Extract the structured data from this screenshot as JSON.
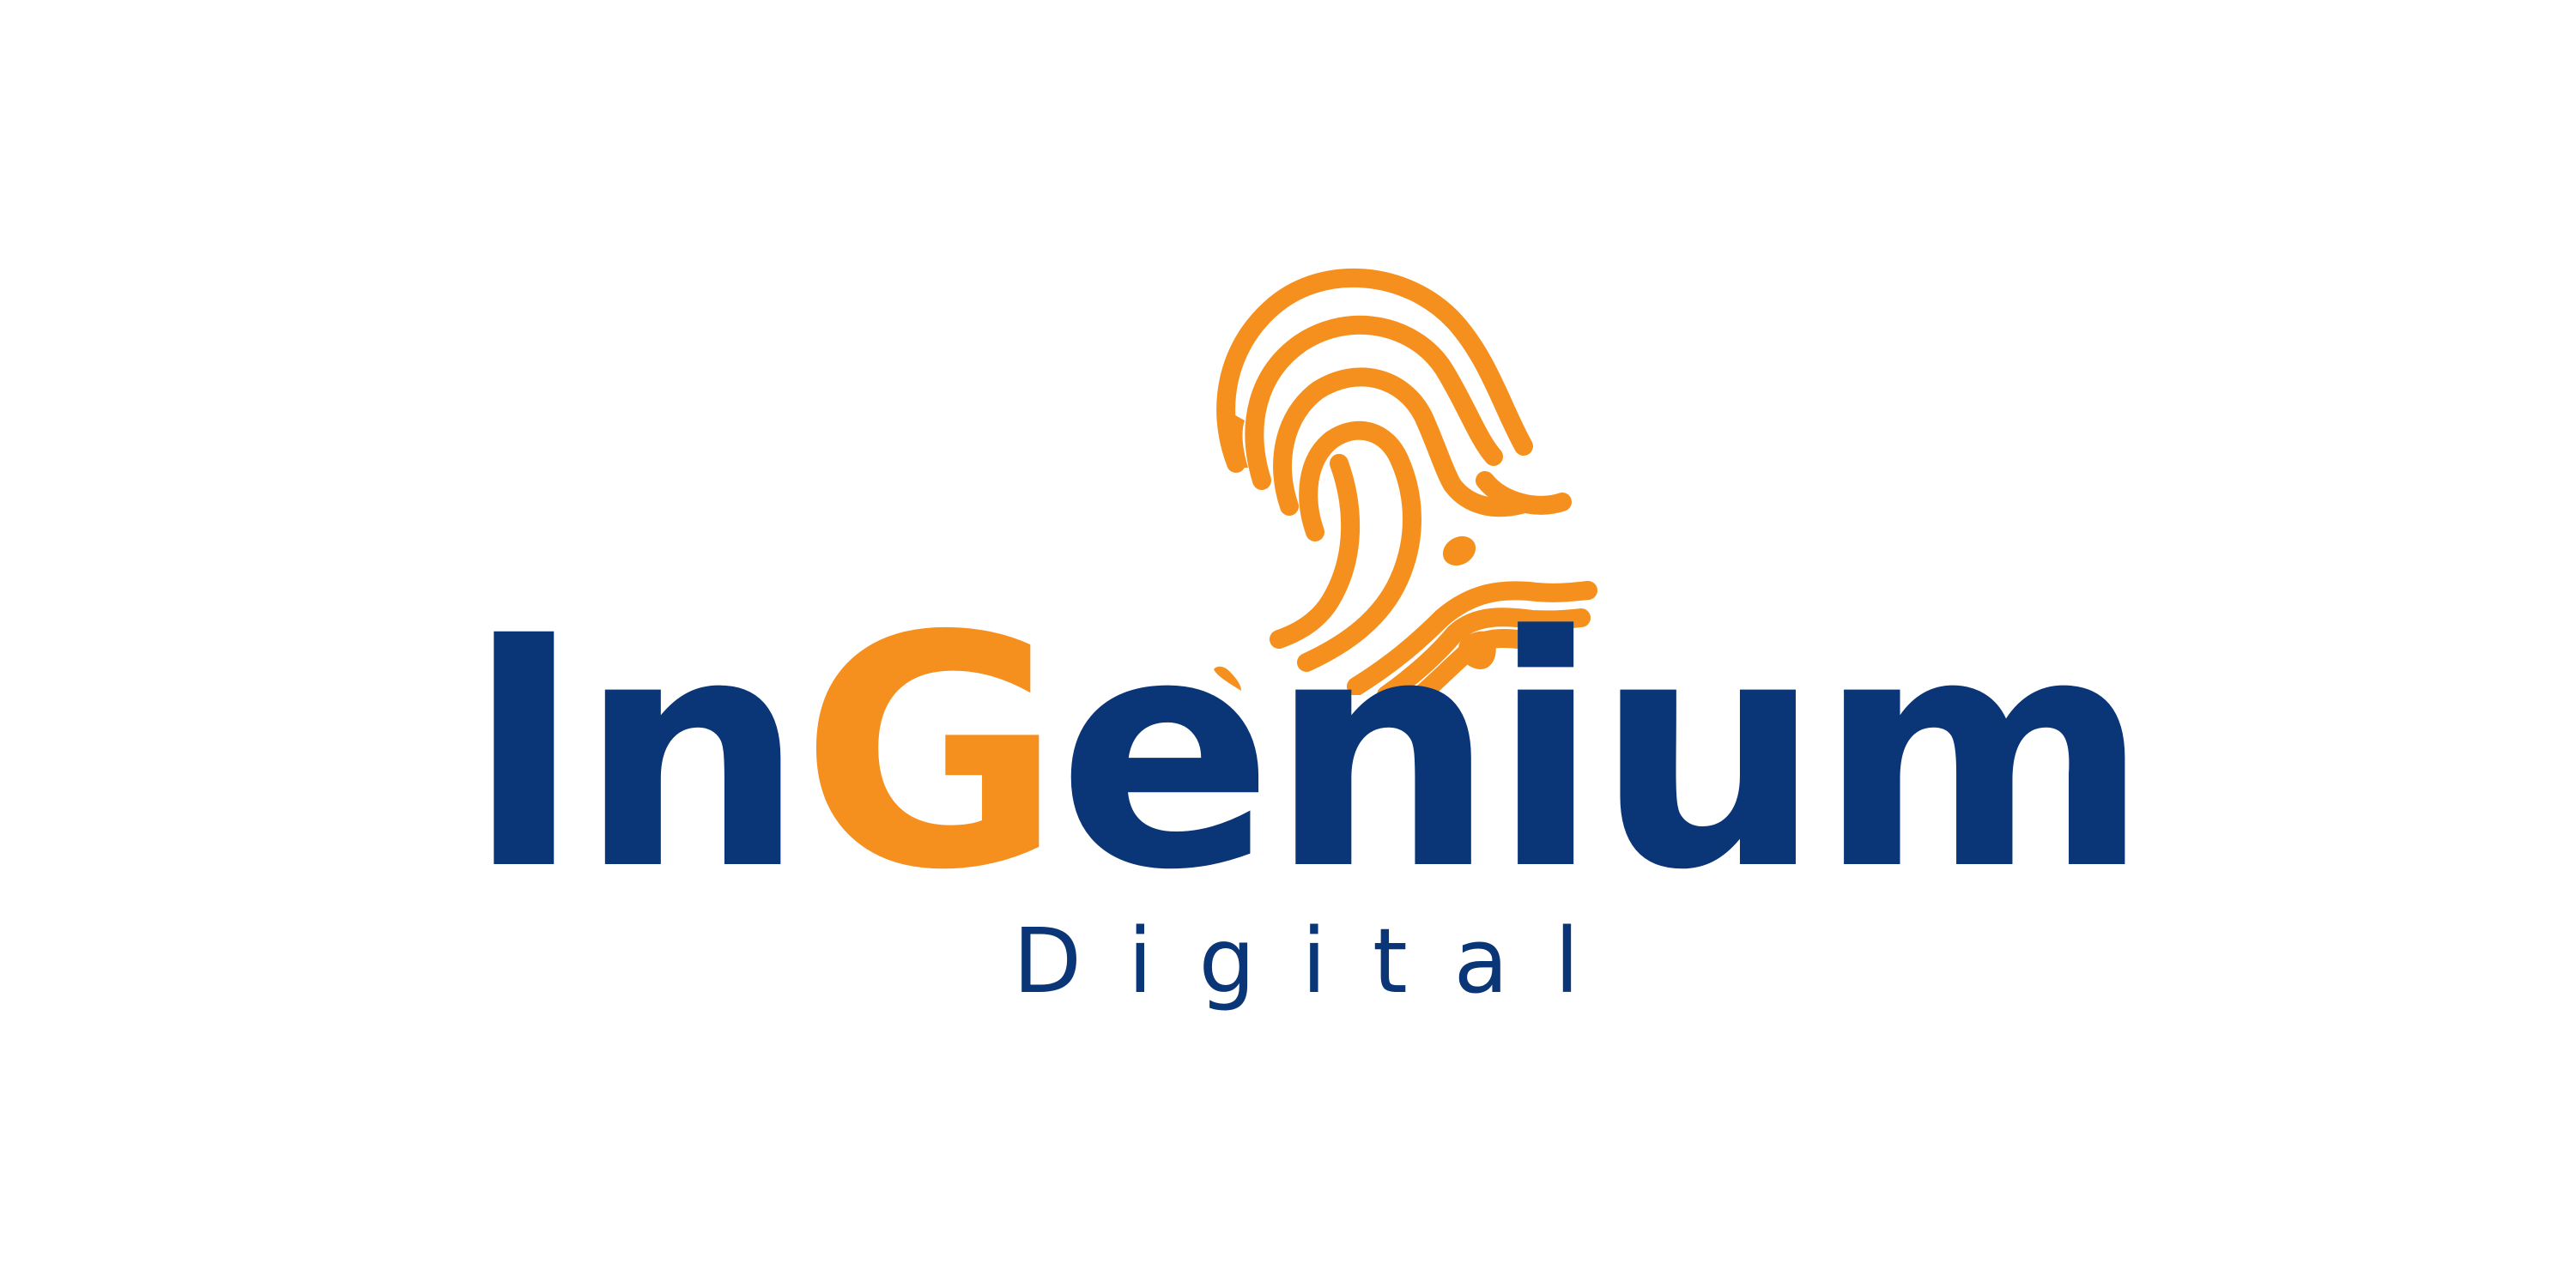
{
  "brand": {
    "wordmark_parts": [
      "In",
      "G",
      "enium"
    ],
    "tagline": "Digital",
    "icon": "fingerprint-icon"
  },
  "colors": {
    "primary": "#0a3577",
    "accent": "#f5901e",
    "background": "#ffffff"
  }
}
